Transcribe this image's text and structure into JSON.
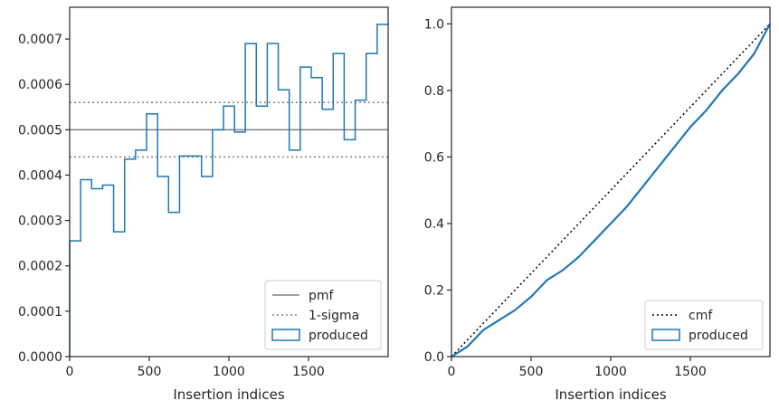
{
  "chart_data": [
    {
      "type": "line",
      "xlabel": "Insertion indices",
      "ylabel": "",
      "xlim": [
        0,
        2000
      ],
      "ylim": [
        0,
        0.00077
      ],
      "xticks": [
        0,
        500,
        1000,
        1500
      ],
      "xtick_labels": [
        "0",
        "500",
        "1000",
        "1500"
      ],
      "yticks": [
        0,
        0.0001,
        0.0002,
        0.0003,
        0.0004,
        0.0005,
        0.0006,
        0.0007
      ],
      "ytick_labels": [
        "0.0000",
        "0.0001",
        "0.0002",
        "0.0003",
        "0.0004",
        "0.0005",
        "0.0006",
        "0.0007"
      ],
      "grid": false,
      "legend_position": "bottom-right",
      "series": [
        {
          "name": "pmf",
          "kind": "hline",
          "y": 0.0005,
          "color": "#808080",
          "style": "solid"
        },
        {
          "name": "1-sigma",
          "kind": "hline",
          "y": [
            0.00044,
            0.00056
          ],
          "color": "#808080",
          "style": "dotted"
        },
        {
          "name": "produced",
          "kind": "step-histogram",
          "color": "#1f77b4",
          "bin_edges": [
            0,
            69,
            138,
            207,
            276,
            345,
            414,
            483,
            552,
            621,
            690,
            759,
            828,
            897,
            966,
            1035,
            1103,
            1172,
            1241,
            1310,
            1379,
            1448,
            1517,
            1586,
            1655,
            1724,
            1793,
            1862,
            1931,
            2000
          ],
          "values": [
            0.000255,
            0.00039,
            0.00037,
            0.000378,
            0.000275,
            0.000435,
            0.000455,
            0.000535,
            0.000397,
            0.000318,
            0.000442,
            0.000442,
            0.000397,
            0.0005,
            0.000552,
            0.000495,
            0.00069,
            0.000552,
            0.00069,
            0.000588,
            0.000455,
            0.000638,
            0.000615,
            0.000545,
            0.000668,
            0.000478,
            0.000565,
            0.000668,
            0.000732
          ]
        }
      ]
    },
    {
      "type": "line",
      "xlabel": "Insertion indices",
      "ylabel": "",
      "xlim": [
        0,
        2000
      ],
      "ylim": [
        0,
        1.05
      ],
      "xticks": [
        0,
        500,
        1000,
        1500
      ],
      "xtick_labels": [
        "0",
        "500",
        "1000",
        "1500"
      ],
      "yticks": [
        0,
        0.2,
        0.4,
        0.6,
        0.8,
        1.0
      ],
      "ytick_labels": [
        "0.0",
        "0.2",
        "0.4",
        "0.6",
        "0.8",
        "1.0"
      ],
      "grid": false,
      "legend_position": "bottom-right",
      "series": [
        {
          "name": "cmf",
          "kind": "line",
          "color": "#000000",
          "style": "dotted",
          "x": [
            0,
            2000
          ],
          "y": [
            0,
            1.0
          ]
        },
        {
          "name": "produced",
          "kind": "step-cumulative",
          "color": "#1f77b4",
          "x": [
            0,
            100,
            200,
            300,
            400,
            500,
            600,
            700,
            800,
            900,
            1000,
            1100,
            1200,
            1300,
            1400,
            1500,
            1600,
            1700,
            1800,
            1900,
            2000
          ],
          "y": [
            0,
            0.03,
            0.08,
            0.11,
            0.14,
            0.18,
            0.23,
            0.26,
            0.3,
            0.35,
            0.4,
            0.45,
            0.51,
            0.57,
            0.63,
            0.69,
            0.74,
            0.8,
            0.85,
            0.91,
            1.0
          ]
        }
      ]
    }
  ]
}
